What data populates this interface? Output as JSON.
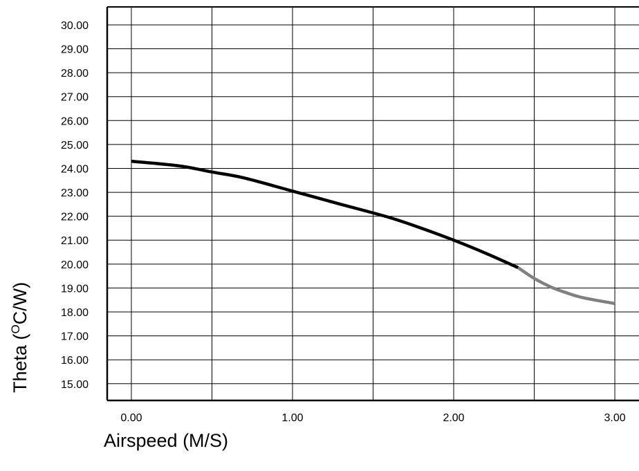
{
  "chart_data": {
    "type": "line",
    "title": "",
    "xlabel": "Airspeed (M/S)",
    "ylabel_prefix": "Theta (",
    "ylabel_sup": "O",
    "ylabel_suffix": "C/W)",
    "xlim": [
      -0.15,
      3.15
    ],
    "ylim": [
      14.3,
      30.75
    ],
    "x_ticks": [
      "0.00",
      "1.00",
      "2.00",
      "3.00"
    ],
    "y_ticks": [
      "30.00",
      "29.00",
      "28.00",
      "27.00",
      "26.00",
      "25.00",
      "24.00",
      "23.00",
      "22.00",
      "21.00",
      "20.00",
      "19.00",
      "18.00",
      "17.00",
      "16.00",
      "15.00"
    ],
    "grid": true,
    "series": [
      {
        "color": "#000000",
        "x": [
          0.0,
          0.3,
          0.5,
          0.7,
          1.0,
          1.3,
          1.6,
          1.8,
          2.0,
          2.2,
          2.4
        ],
        "y": [
          24.3,
          24.1,
          23.85,
          23.6,
          23.05,
          22.5,
          21.95,
          21.5,
          21.0,
          20.45,
          19.85
        ]
      },
      {
        "color": "#808080",
        "x": [
          2.4,
          2.5,
          2.6,
          2.7,
          2.8,
          3.0
        ],
        "y": [
          19.85,
          19.4,
          19.05,
          18.8,
          18.6,
          18.35
        ]
      }
    ]
  }
}
